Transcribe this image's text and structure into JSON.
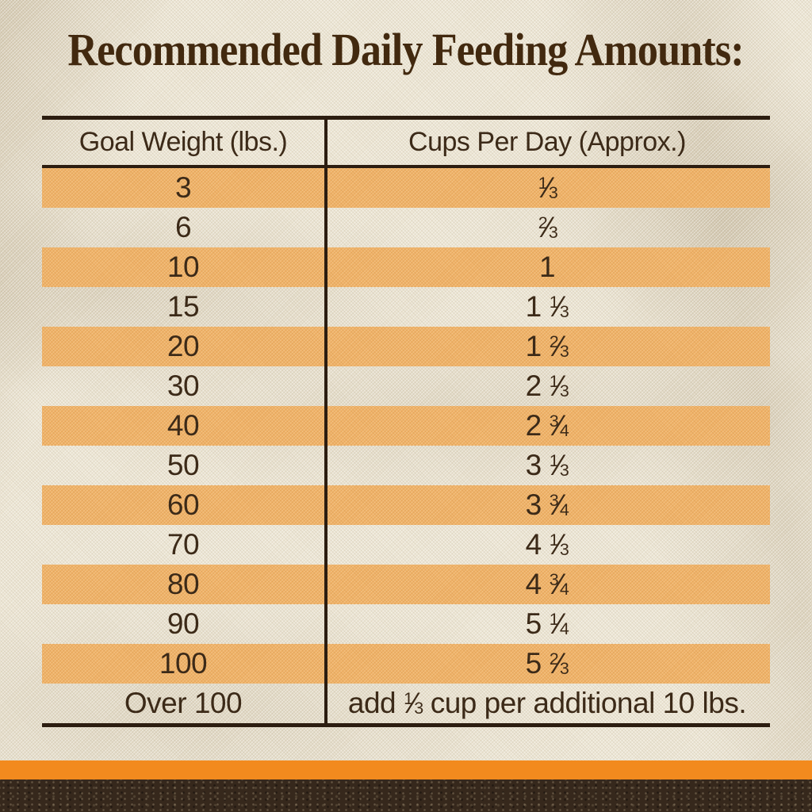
{
  "title": "Recommended Daily Feeding Amounts:",
  "table": {
    "columns": [
      "Goal Weight (lbs.)",
      "Cups Per Day (Approx.)"
    ],
    "rows": [
      {
        "weight": "3",
        "cups": {
          "pre": "",
          "num": "1",
          "den": "3",
          "post": ""
        },
        "striped": true
      },
      {
        "weight": "6",
        "cups": {
          "pre": "",
          "num": "2",
          "den": "3",
          "post": ""
        },
        "striped": false
      },
      {
        "weight": "10",
        "cups": {
          "pre": "1",
          "num": "",
          "den": "",
          "post": ""
        },
        "striped": true
      },
      {
        "weight": "15",
        "cups": {
          "pre": "1",
          "num": "1",
          "den": "3",
          "post": ""
        },
        "striped": false
      },
      {
        "weight": "20",
        "cups": {
          "pre": "1",
          "num": "2",
          "den": "3",
          "post": ""
        },
        "striped": true
      },
      {
        "weight": "30",
        "cups": {
          "pre": "2",
          "num": "1",
          "den": "3",
          "post": ""
        },
        "striped": false
      },
      {
        "weight": "40",
        "cups": {
          "pre": "2",
          "num": "3",
          "den": "4",
          "post": ""
        },
        "striped": true
      },
      {
        "weight": "50",
        "cups": {
          "pre": "3",
          "num": "1",
          "den": "3",
          "post": ""
        },
        "striped": false
      },
      {
        "weight": "60",
        "cups": {
          "pre": "3",
          "num": "3",
          "den": "4",
          "post": ""
        },
        "striped": true
      },
      {
        "weight": "70",
        "cups": {
          "pre": "4",
          "num": "1",
          "den": "3",
          "post": ""
        },
        "striped": false
      },
      {
        "weight": "80",
        "cups": {
          "pre": "4",
          "num": "3",
          "den": "4",
          "post": ""
        },
        "striped": true
      },
      {
        "weight": "90",
        "cups": {
          "pre": "5",
          "num": "1",
          "den": "4",
          "post": ""
        },
        "striped": false
      },
      {
        "weight": "100",
        "cups": {
          "pre": "5",
          "num": "2",
          "den": "3",
          "post": ""
        },
        "striped": true
      },
      {
        "weight": "Over 100",
        "cups": {
          "pre": "add",
          "num": "1",
          "den": "3",
          "post": "cup per additional 10 lbs."
        },
        "striped": false
      }
    ]
  },
  "colors": {
    "fabric_background": "#ECE5D3",
    "stripe_orange": "#EFB167",
    "table_line": "#2C1D10",
    "text_brown": "#3C2A18",
    "title_brown": "#42290F",
    "accent_bar_orange": "#F28A1E",
    "footer_brown": "#36281C"
  },
  "chart_data": {
    "type": "table",
    "title": "Recommended Daily Feeding Amounts:",
    "columns": [
      "Goal Weight (lbs.)",
      "Cups Per Day (Approx.)"
    ],
    "rows": [
      [
        "3",
        "1/3"
      ],
      [
        "6",
        "2/3"
      ],
      [
        "10",
        "1"
      ],
      [
        "15",
        "1 1/3"
      ],
      [
        "20",
        "1 2/3"
      ],
      [
        "30",
        "2 1/3"
      ],
      [
        "40",
        "2 3/4"
      ],
      [
        "50",
        "3 1/3"
      ],
      [
        "60",
        "3 3/4"
      ],
      [
        "70",
        "4 1/3"
      ],
      [
        "80",
        "4 3/4"
      ],
      [
        "90",
        "5 1/4"
      ],
      [
        "100",
        "5 2/3"
      ],
      [
        "Over 100",
        "add 1/3 cup per additional 10 lbs."
      ]
    ],
    "layout_hints": {
      "striped_rows": "alternating orange starting with first body row",
      "grid": "outer horizontal rules top/bottom, header underline, single vertical divider"
    }
  }
}
